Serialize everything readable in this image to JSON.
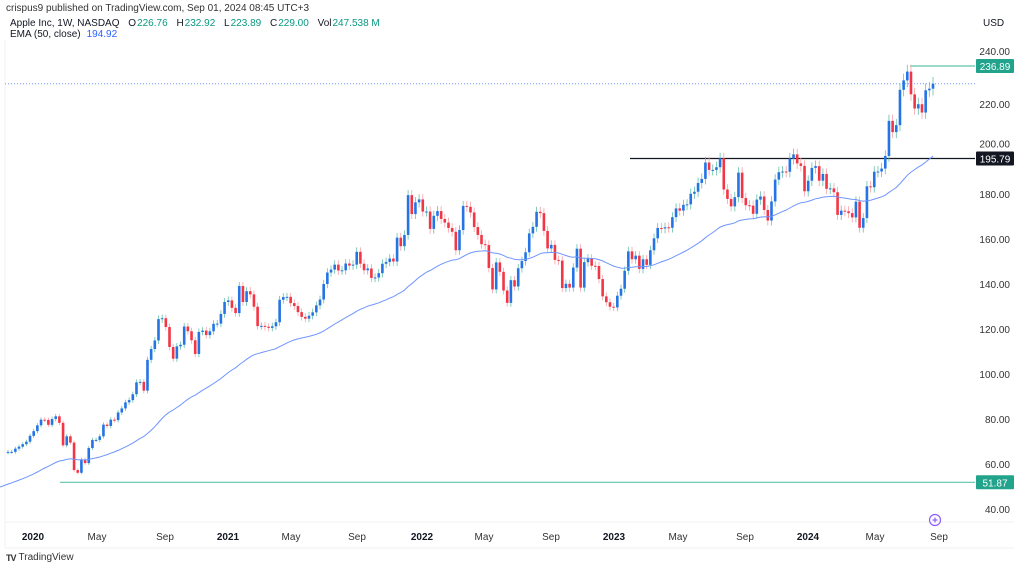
{
  "header": {
    "published": "crispus9 published on TradingView.com, Sep 01, 2024 08:45 UTC+3"
  },
  "legend": {
    "symbol": "Apple Inc, 1W, NASDAQ",
    "o_label": "O",
    "o": "226.76",
    "h_label": "H",
    "h": "232.92",
    "l_label": "L",
    "l": "223.89",
    "c_label": "C",
    "c": "229.00",
    "vol_label": "Vol",
    "vol": "247.538 M",
    "ema_label": "EMA (50, close)",
    "ema": "194.92"
  },
  "currency": "USD",
  "footer": {
    "logo": "TradingView"
  },
  "colors": {
    "up": "#2474e5",
    "down": "#f23645",
    "ema": "#6f95ff",
    "tag_green": "#22a38b",
    "tag_black": "#131722"
  },
  "chart_data": {
    "type": "candlestick",
    "title": "Apple Inc, 1W, NASDAQ",
    "first_week": "2019-11-15",
    "interval": "1W",
    "ylim": [
      35,
      245
    ],
    "price_ticks": [
      "240.00",
      "220.00",
      "200.00",
      "180.00",
      "160.00",
      "140.00",
      "120.00",
      "100.00",
      "80.00",
      "60.00",
      "40.00"
    ],
    "price_tick_values": [
      240,
      220,
      200,
      180,
      160,
      140,
      120,
      100,
      80,
      60,
      40
    ],
    "time_ticks": [
      "2020",
      "May",
      "Sep",
      "2021",
      "May",
      "Sep",
      "2022",
      "May",
      "Sep",
      "2023",
      "May",
      "Sep",
      "2024",
      "May",
      "Sep"
    ],
    "ema_period": 50,
    "ema_seed": 50.5,
    "closes": [
      65.4,
      65.4,
      66.8,
      67.7,
      68.8,
      69.9,
      72.5,
      74.6,
      77.2,
      79.7,
      79.6,
      77.4,
      80.0,
      81.2,
      78.3,
      68.3,
      72.3,
      69.5,
      57.3,
      56.1,
      62.0,
      60.4,
      67.1,
      70.7,
      70.7,
      72.3,
      77.5,
      76.9,
      79.7,
      79.5,
      82.9,
      84.7,
      87.4,
      88.4,
      91.0,
      96.3,
      96.5,
      92.6,
      106.3,
      111.1,
      114.9,
      124.4,
      124.8,
      120.9,
      112.0,
      106.8,
      112.3,
      113.0,
      121.1,
      119.0,
      115.0,
      108.9,
      118.7,
      119.3,
      117.3,
      119.0,
      122.3,
      122.4,
      126.7,
      132.0,
      132.7,
      129.4,
      127.1,
      139.1,
      132.0,
      136.8,
      135.4,
      129.9,
      121.3,
      121.4,
      121.0,
      120.5,
      121.2,
      123.0,
      133.0,
      134.2,
      134.3,
      131.5,
      130.2,
      127.5,
      125.4,
      124.6,
      125.9,
      127.4,
      130.5,
      133.1,
      140.0,
      145.1,
      146.4,
      148.6,
      146.0,
      146.1,
      149.1,
      148.2,
      148.6,
      154.3,
      149.0,
      146.1,
      146.9,
      142.7,
      142.9,
      144.8,
      149.0,
      149.8,
      151.3,
      150.0,
      160.6,
      156.8,
      161.8,
      179.5,
      171.1,
      176.3,
      177.6,
      172.2,
      172.2,
      164.5,
      170.3,
      172.4,
      168.9,
      167.3,
      164.9,
      163.2,
      155.0,
      164.0,
      174.7,
      174.3,
      171.8,
      165.3,
      161.8,
      157.7,
      157.3,
      147.1,
      137.6,
      149.6,
      145.4,
      137.1,
      131.6,
      141.7,
      138.9,
      147.0,
      150.2,
      154.1,
      162.5,
      165.4,
      172.1,
      171.5,
      163.6,
      155.8,
      157.4,
      150.7,
      150.4,
      138.2,
      140.1,
      138.4,
      147.3,
      155.7,
      138.4,
      149.7,
      151.3,
      148.1,
      148.0,
      142.2,
      134.5,
      131.9,
      129.9,
      129.6,
      134.8,
      137.9,
      145.9,
      154.5,
      151.0,
      152.6,
      146.7,
      151.0,
      148.5,
      155.0,
      160.3,
      164.9,
      164.7,
      165.2,
      165.0,
      169.7,
      173.6,
      172.6,
      175.2,
      175.4,
      180.1,
      181.0,
      184.9,
      186.7,
      194.0,
      190.7,
      190.7,
      191.9,
      195.8,
      182.0,
      177.8,
      174.5,
      178.6,
      189.5,
      178.2,
      175.0,
      174.8,
      171.2,
      177.5,
      178.9,
      172.9,
      168.2,
      176.7,
      186.4,
      189.7,
      190.0,
      189.9,
      195.7,
      197.6,
      193.6,
      192.5,
      181.2,
      185.9,
      191.6,
      192.4,
      185.9,
      188.9,
      182.3,
      182.5,
      180.8,
      170.7,
      172.6,
      172.3,
      171.5,
      169.6,
      176.6,
      165.0,
      169.3,
      183.4,
      183.0,
      189.9,
      190.0,
      191.3,
      196.9,
      212.5,
      207.5,
      210.6,
      226.3,
      230.5,
      234.4,
      224.3,
      218.0,
      219.9,
      216.2,
      226.1,
      226.8,
      229.0
    ],
    "levels": [
      {
        "label": "236.89",
        "value": 236.89,
        "style": "green"
      },
      {
        "label": "195.79",
        "value": 195.79,
        "style": "black"
      },
      {
        "label": "51.87",
        "value": 51.87,
        "style": "green"
      }
    ],
    "last_price": 229.0
  }
}
